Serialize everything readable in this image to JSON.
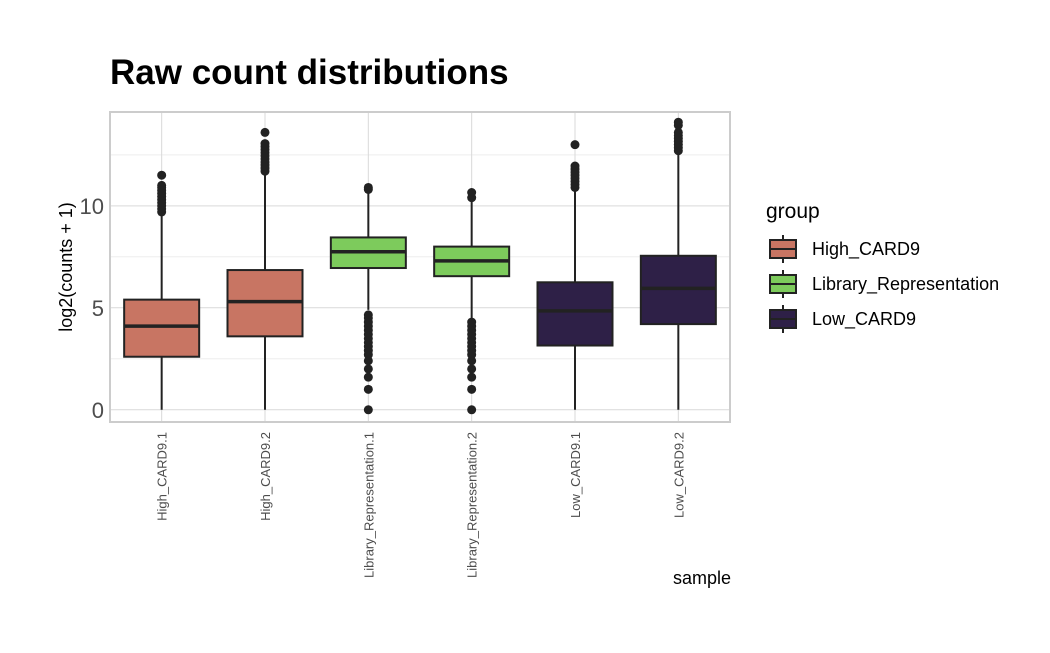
{
  "chart_data": {
    "type": "boxplot",
    "title": "Raw count distributions",
    "xlabel": "sample",
    "ylabel": "log2(counts + 1)",
    "ylim": [
      -0.6,
      14.6
    ],
    "yticks": [
      0,
      5,
      10
    ],
    "grid": true,
    "legend": {
      "title": "group",
      "placement": "right",
      "entries": [
        {
          "label": "High_CARD9",
          "color": "#c87563"
        },
        {
          "label": "Library_Representation",
          "color": "#7dcb5c"
        },
        {
          "label": "Low_CARD9",
          "color": "#2e2047"
        }
      ]
    },
    "categories": [
      "High_CARD9.1",
      "High_CARD9.2",
      "Library_Representation.1",
      "Library_Representation.2",
      "Low_CARD9.1",
      "Low_CARD9.2"
    ],
    "boxes": [
      {
        "sample": "High_CARD9.1",
        "group": "High_CARD9",
        "min": 0,
        "q1": 2.6,
        "median": 4.1,
        "q3": 5.4,
        "max": 9.6,
        "outliers": [
          9.7,
          9.85,
          10.0,
          10.15,
          10.3,
          10.45,
          10.6,
          10.75,
          10.9,
          11.0,
          11.5
        ]
      },
      {
        "sample": "High_CARD9.2",
        "group": "High_CARD9",
        "min": 0,
        "q1": 3.6,
        "median": 5.3,
        "q3": 6.85,
        "max": 11.6,
        "outliers": [
          11.7,
          11.85,
          12.0,
          12.15,
          12.3,
          12.45,
          12.6,
          12.75,
          12.9,
          13.05,
          13.6
        ]
      },
      {
        "sample": "Library_Representation.1",
        "group": "Library_Representation",
        "min": 4.9,
        "q1": 6.95,
        "median": 7.75,
        "q3": 8.45,
        "max": 10.7,
        "outliers": [
          0.0,
          1.0,
          1.6,
          2.0,
          2.4,
          2.7,
          2.9,
          3.1,
          3.3,
          3.5,
          3.7,
          3.9,
          4.1,
          4.3,
          4.5,
          4.65,
          10.8,
          10.9
        ]
      },
      {
        "sample": "Library_Representation.2",
        "group": "Library_Representation",
        "min": 4.4,
        "q1": 6.55,
        "median": 7.3,
        "q3": 8.0,
        "max": 10.3,
        "outliers": [
          0.0,
          1.0,
          1.6,
          2.0,
          2.4,
          2.7,
          2.9,
          3.1,
          3.3,
          3.5,
          3.7,
          3.9,
          4.1,
          4.3,
          10.4,
          10.65
        ]
      },
      {
        "sample": "Low_CARD9.1",
        "group": "Low_CARD9",
        "min": 0,
        "q1": 3.15,
        "median": 4.85,
        "q3": 6.25,
        "max": 10.8,
        "outliers": [
          10.9,
          11.05,
          11.2,
          11.35,
          11.5,
          11.65,
          11.8,
          11.95,
          13.0
        ]
      },
      {
        "sample": "Low_CARD9.2",
        "group": "Low_CARD9",
        "min": 0,
        "q1": 4.2,
        "median": 5.95,
        "q3": 7.55,
        "max": 12.6,
        "outliers": [
          12.7,
          12.85,
          13.0,
          13.15,
          13.3,
          13.45,
          13.6,
          13.95,
          14.1
        ]
      }
    ]
  }
}
